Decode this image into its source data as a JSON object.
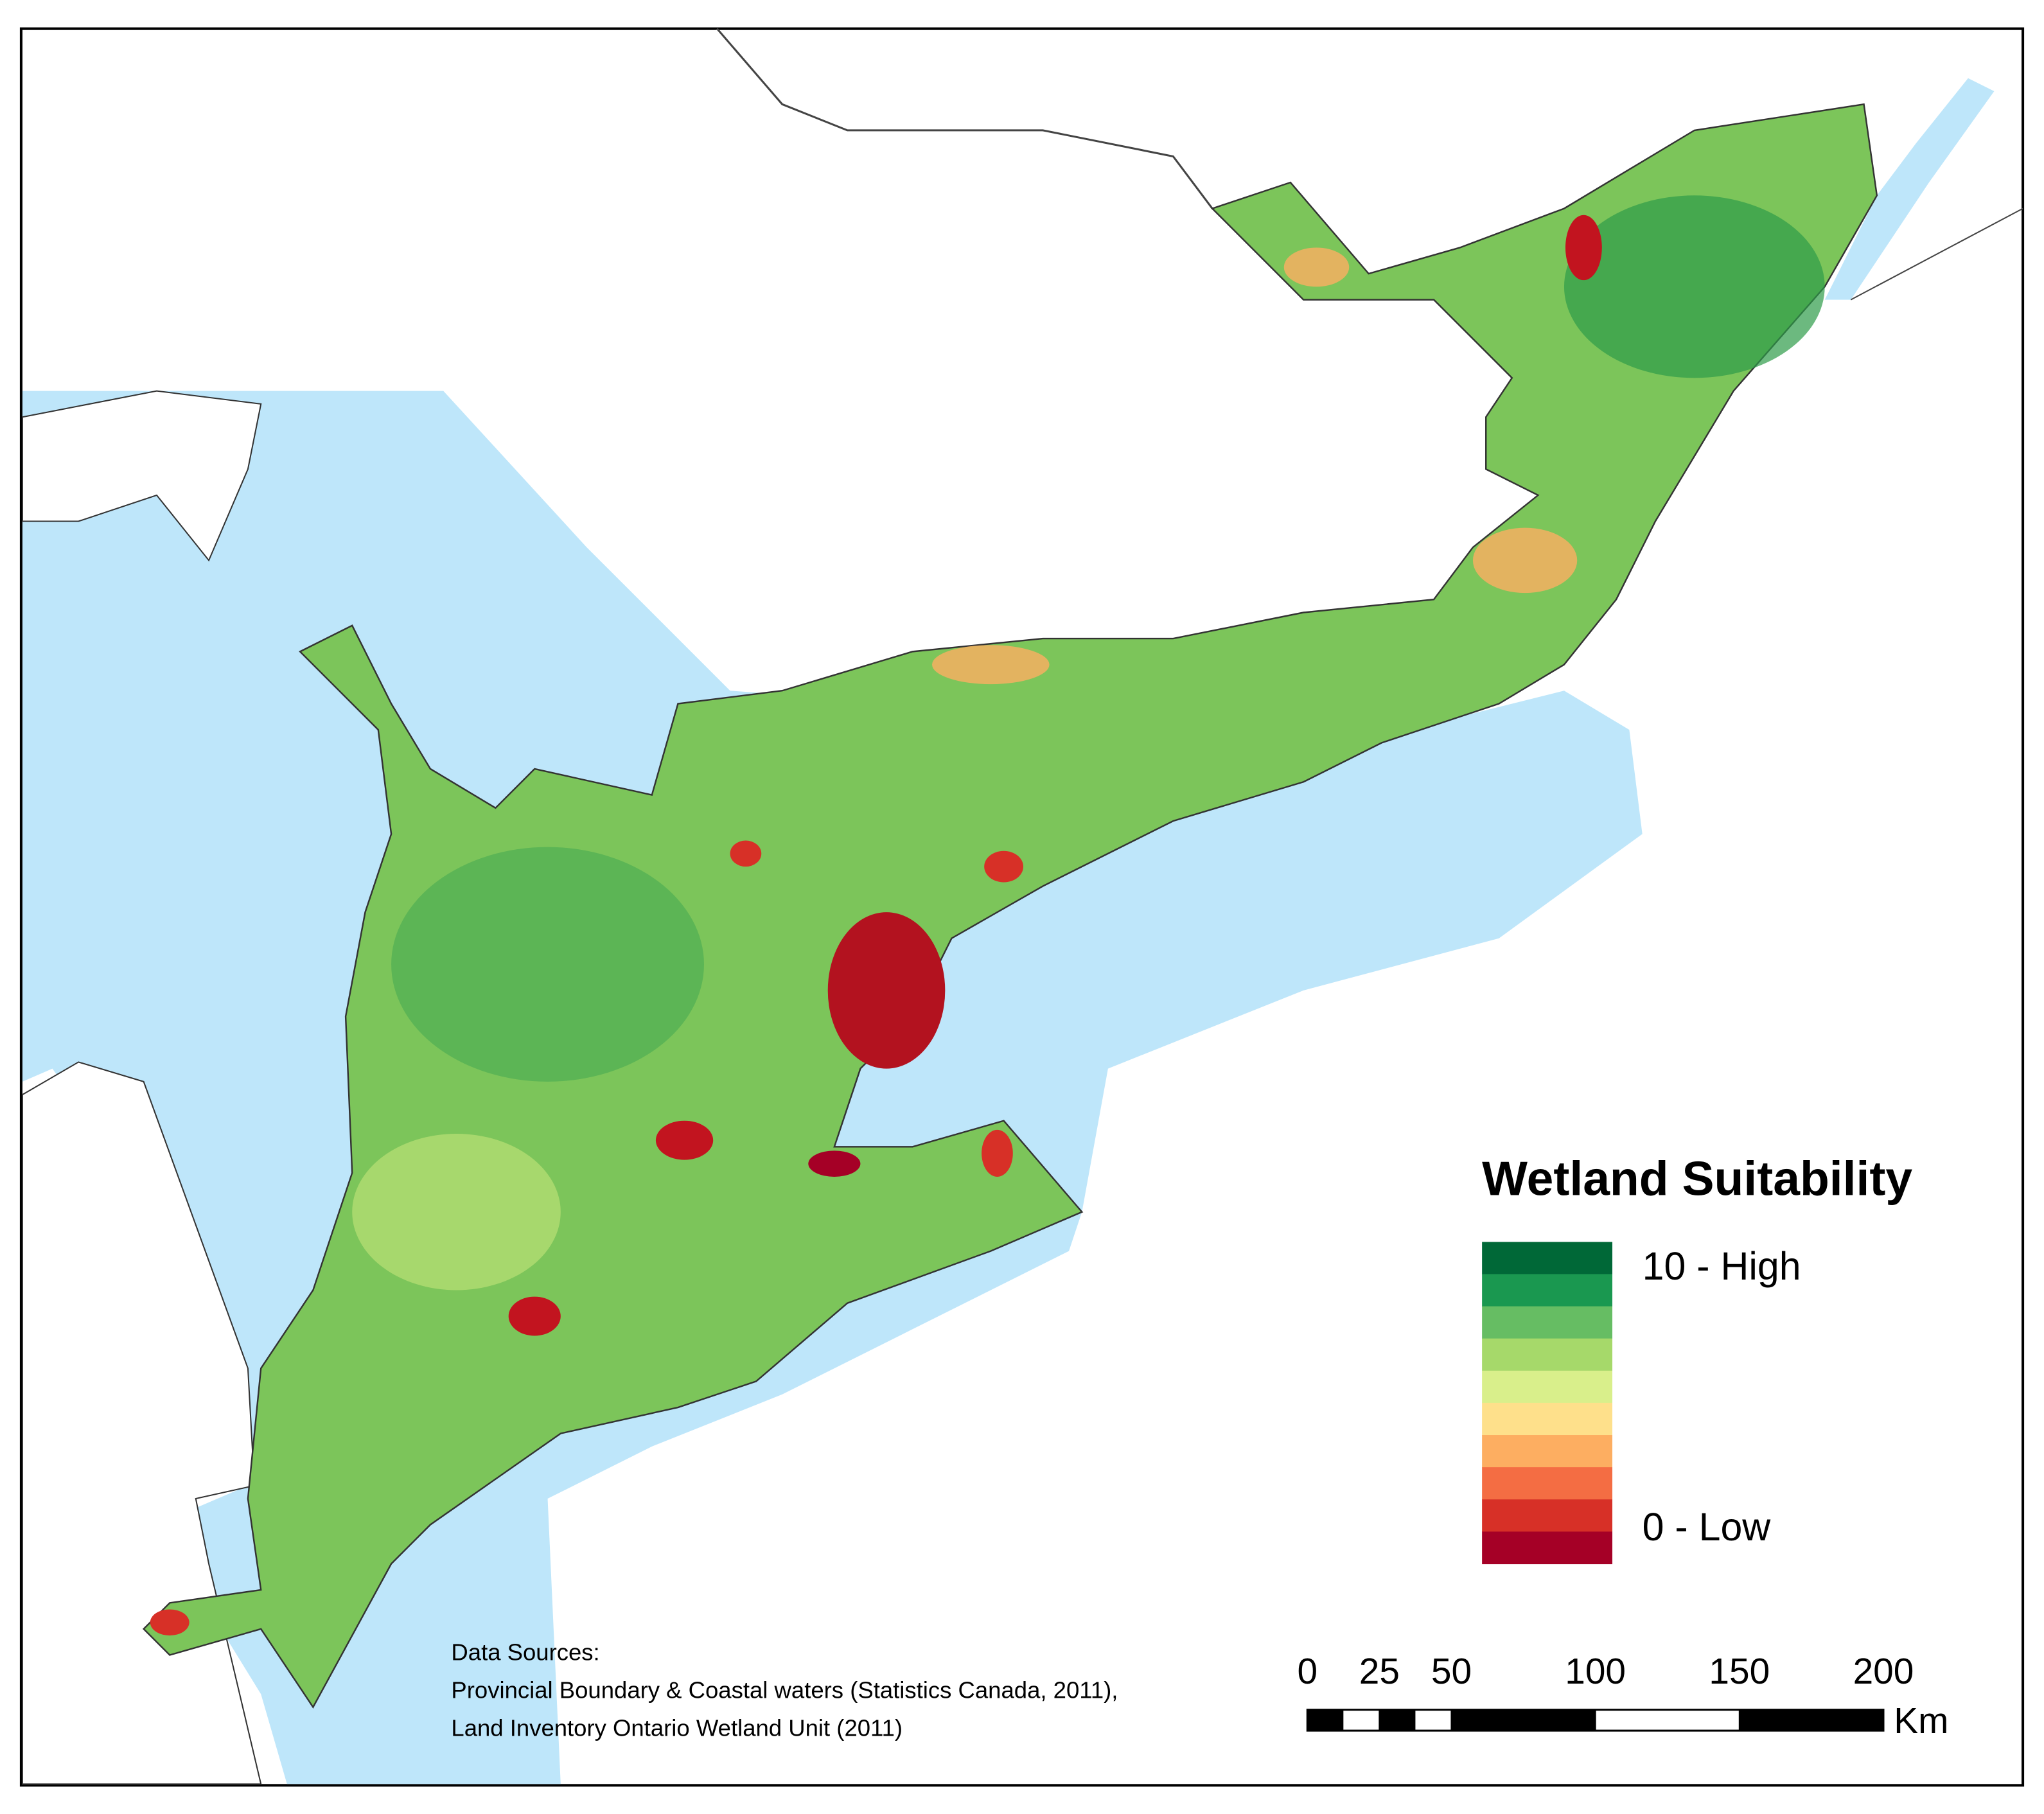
{
  "legend": {
    "title": "Wetland Suitability",
    "high_label": "10 - High",
    "low_label": "0 - Low",
    "colors": [
      "#006837",
      "#1a9850",
      "#66bd63",
      "#a6d96a",
      "#d9ef8b",
      "#fee08b",
      "#fdae61",
      "#f46d43",
      "#d73027",
      "#a50026"
    ]
  },
  "scale_bar": {
    "ticks": [
      0,
      25,
      50,
      100,
      150,
      200
    ],
    "unit": "Km"
  },
  "data_sources": {
    "heading": "Data Sources:",
    "lines": [
      "Provincial Boundary & Coastal waters (Statistics Canada, 2011),",
      "Land Inventory Ontario Wetland Unit (2011)"
    ]
  }
}
